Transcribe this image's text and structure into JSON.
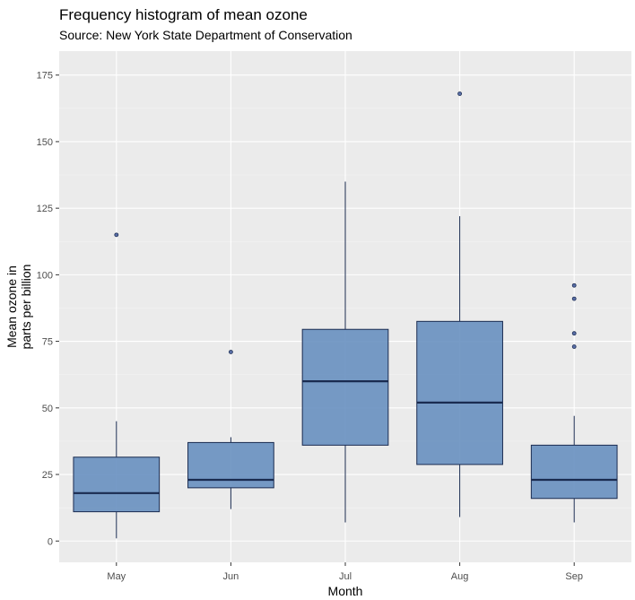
{
  "chart_data": {
    "type": "boxplot",
    "title": "Frequency histogram of mean ozone",
    "subtitle": "Source: New York State Department of Conservation",
    "xlabel": "Month",
    "ylabel_lines": [
      "Mean ozone in",
      "parts per billion"
    ],
    "categories": [
      "May",
      "Jun",
      "Jul",
      "Aug",
      "Sep"
    ],
    "ylim": [
      -8,
      184
    ],
    "yticks": [
      0,
      25,
      50,
      75,
      100,
      125,
      150,
      175
    ],
    "grid": true,
    "boxes": [
      {
        "category": "May",
        "whisker_low": 1,
        "q1": 11,
        "median": 18,
        "q3": 31.5,
        "whisker_high": 45,
        "outliers": [
          115
        ]
      },
      {
        "category": "Jun",
        "whisker_low": 12,
        "q1": 20,
        "median": 23,
        "q3": 37,
        "whisker_high": 39,
        "outliers": [
          71
        ]
      },
      {
        "category": "Jul",
        "whisker_low": 7,
        "q1": 36,
        "median": 60,
        "q3": 79.5,
        "whisker_high": 135,
        "outliers": []
      },
      {
        "category": "Aug",
        "whisker_low": 9,
        "q1": 28.75,
        "median": 52,
        "q3": 82.5,
        "whisker_high": 122,
        "outliers": [
          168
        ]
      },
      {
        "category": "Sep",
        "whisker_low": 7,
        "q1": 16,
        "median": 23,
        "q3": 36,
        "whisker_high": 47,
        "outliers": [
          73,
          78,
          91,
          96
        ]
      }
    ],
    "colors": {
      "box_fill": "#6890c0",
      "box_line": "#1a2b50",
      "panel_bg": "#ebebeb",
      "grid_major": "#ffffff",
      "grid_minor": "#f4f4f4"
    }
  }
}
